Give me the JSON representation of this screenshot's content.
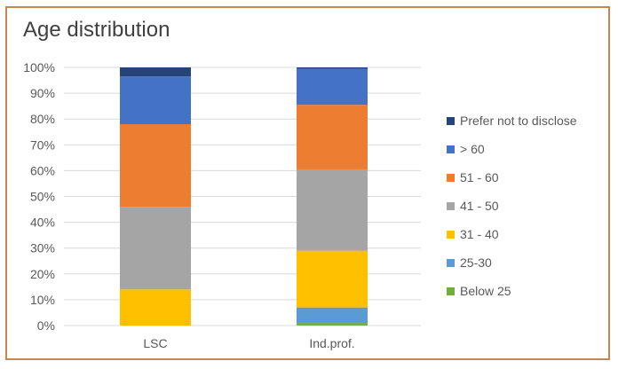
{
  "chart_data": {
    "type": "bar",
    "stacked": true,
    "title": "Age distribution",
    "categories": [
      "LSC",
      "Ind.prof."
    ],
    "ylim": [
      0,
      100
    ],
    "yticks": [
      "0%",
      "10%",
      "20%",
      "30%",
      "40%",
      "50%",
      "60%",
      "70%",
      "80%",
      "90%",
      "100%"
    ],
    "grid": true,
    "legend_position": "right",
    "series": [
      {
        "name": "Below 25",
        "color": "#70ad47",
        "values": [
          0,
          1
        ]
      },
      {
        "name": "25-30",
        "color": "#5b9bd5",
        "values": [
          0,
          6
        ]
      },
      {
        "name": "31 - 40",
        "color": "#ffc000",
        "values": [
          14,
          22
        ]
      },
      {
        "name": "41 - 50",
        "color": "#a5a5a5",
        "values": [
          32,
          31.5
        ]
      },
      {
        "name": "51 - 60",
        "color": "#ed7d31",
        "values": [
          32,
          25
        ]
      },
      {
        "name": "> 60",
        "color": "#4472c4",
        "values": [
          18.5,
          14
        ]
      },
      {
        "name": "Prefer not to disclose",
        "color": "#264478",
        "values": [
          3.5,
          0.5
        ]
      }
    ]
  }
}
